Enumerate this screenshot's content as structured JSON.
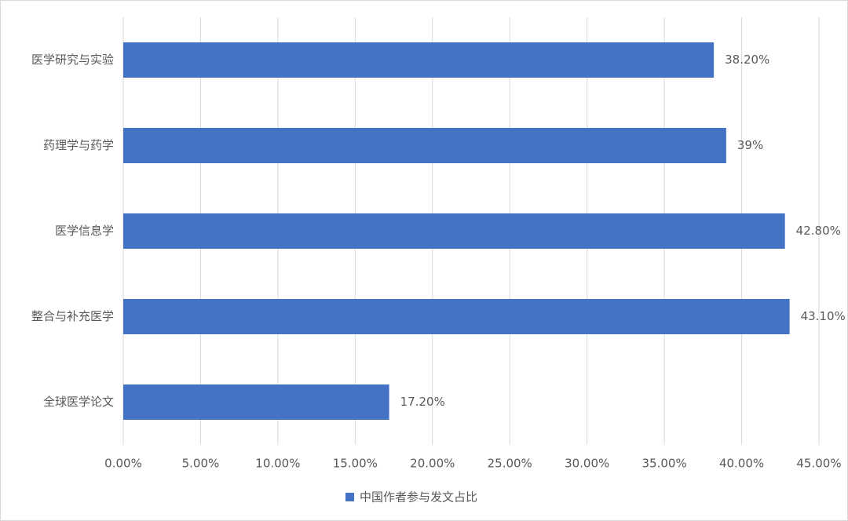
{
  "chart_data": {
    "type": "bar",
    "orientation": "horizontal",
    "categories": [
      "医学研究与实验",
      "药理学与药学",
      "医学信息学",
      "整合与补充医学",
      "全球医学论文"
    ],
    "series": [
      {
        "name": "中国作者参与发文占比",
        "color": "#4472c4",
        "values": [
          38.2,
          39,
          42.8,
          43.1,
          17.2
        ],
        "value_labels": [
          "38.20%",
          "39%",
          "42.80%",
          "43.10%",
          "17.20%"
        ]
      }
    ],
    "xlim": [
      0,
      45
    ],
    "xticks": [
      {
        "value": 0,
        "label": "0.00%"
      },
      {
        "value": 5,
        "label": "5.00%"
      },
      {
        "value": 10,
        "label": "10.00%"
      },
      {
        "value": 15,
        "label": "15.00%"
      },
      {
        "value": 20,
        "label": "20.00%"
      },
      {
        "value": 25,
        "label": "25.00%"
      },
      {
        "value": 30,
        "label": "30.00%"
      },
      {
        "value": 35,
        "label": "35.00%"
      },
      {
        "value": 40,
        "label": "40.00%"
      },
      {
        "value": 45,
        "label": "45.00%"
      }
    ],
    "grid": true,
    "legend": "bottom"
  }
}
